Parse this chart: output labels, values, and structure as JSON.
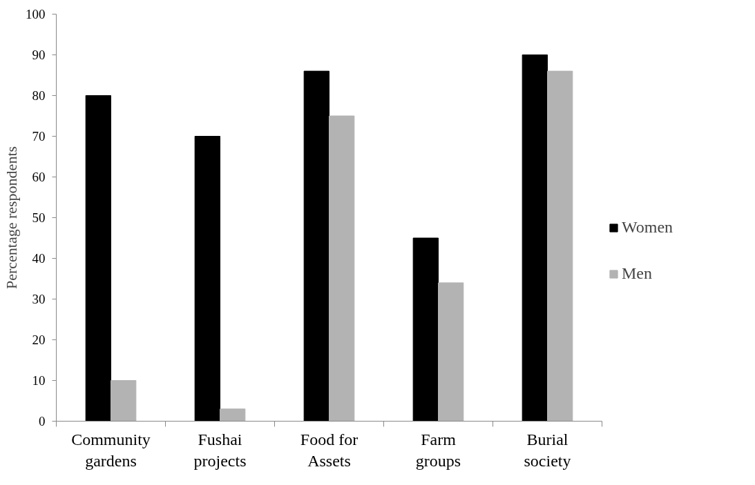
{
  "chart_data": {
    "type": "bar",
    "ylabel": "Percentage respondents",
    "categories": [
      "Community\ngardens",
      "Fushai\nprojects",
      "Food for\nAssets",
      "Farm\ngroups",
      "Burial\nsociety"
    ],
    "series": [
      {
        "name": "Women",
        "color": "#000000",
        "values": [
          80,
          70,
          86,
          45,
          90
        ]
      },
      {
        "name": "Men",
        "color": "#b3b3b3",
        "values": [
          10,
          3,
          75,
          34,
          86
        ]
      }
    ],
    "ylim": [
      0,
      100
    ],
    "yticks": [
      0,
      10,
      20,
      30,
      40,
      50,
      60,
      70,
      80,
      90,
      100
    ],
    "grid": false,
    "legend": "right"
  }
}
